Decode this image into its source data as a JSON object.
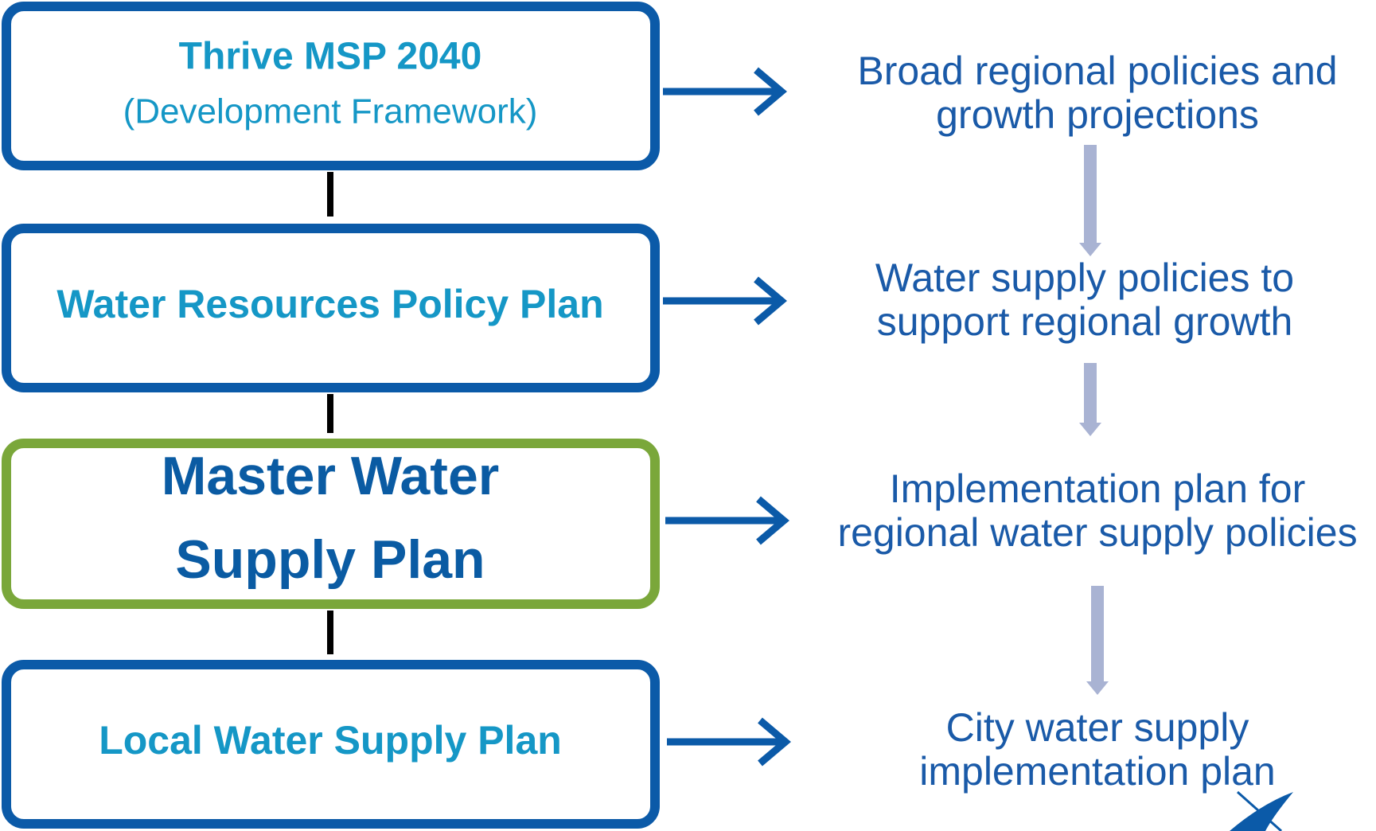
{
  "nodes": [
    {
      "title": "Thrive MSP 2040",
      "subtitle": "(Development Framework)",
      "description": [
        "Broad regional policies and",
        "growth projections"
      ]
    },
    {
      "title": "Water Resources Policy Plan",
      "description": [
        "Water supply policies to",
        "support regional growth"
      ]
    },
    {
      "title": [
        "Master Water",
        "Supply Plan"
      ],
      "description": [
        "Implementation plan for",
        "regional water supply policies"
      ]
    },
    {
      "title": "Local Water Supply Plan",
      "description": [
        "City water supply",
        "implementation plan"
      ]
    }
  ]
}
